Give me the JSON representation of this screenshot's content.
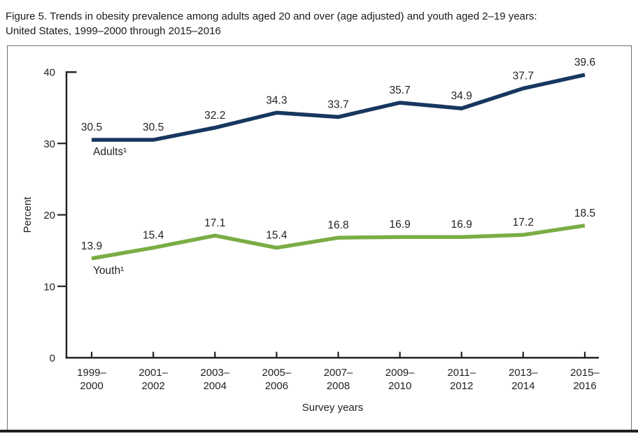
{
  "figure": {
    "title_line1": "Figure 5. Trends in obesity prevalence among adults aged 20 and over (age adjusted) and youth aged 2–19 years:",
    "title_line2": "United States, 1999–2000 through 2015–2016"
  },
  "chart_data": {
    "type": "line",
    "title": "Figure 5. Trends in obesity prevalence among adults aged 20 and over (age adjusted) and youth aged 2–19 years: United States, 1999–2000 through 2015–2016",
    "xlabel": "Survey years",
    "ylabel": "Percent",
    "ylim": [
      0,
      40
    ],
    "yticks": [
      0,
      10,
      20,
      30,
      40
    ],
    "grid": false,
    "legend_position": "inline-labels-on-lines",
    "axis_color": "#231f20",
    "categories": [
      "1999–2000",
      "2001–2002",
      "2003–2004",
      "2005–2006",
      "2007–2008",
      "2009–2010",
      "2011–2012",
      "2013–2014",
      "2015–2016"
    ],
    "categories_display": [
      [
        "1999–",
        "2000"
      ],
      [
        "2001–",
        "2002"
      ],
      [
        "2003–",
        "2004"
      ],
      [
        "2005–",
        "2006"
      ],
      [
        "2007–",
        "2008"
      ],
      [
        "2009–",
        "2010"
      ],
      [
        "2011–",
        "2012"
      ],
      [
        "2013–",
        "2014"
      ],
      [
        "2015–",
        "2016"
      ]
    ],
    "series": [
      {
        "name": "Adults¹",
        "id": "adults",
        "color": "#17375f",
        "values": [
          30.5,
          30.5,
          32.2,
          34.3,
          33.7,
          35.7,
          34.9,
          37.7,
          39.6
        ]
      },
      {
        "name": "Youth¹",
        "id": "youth",
        "color": "#7aad44",
        "values": [
          13.9,
          15.4,
          17.1,
          15.4,
          16.8,
          16.9,
          16.9,
          17.2,
          18.5
        ]
      }
    ]
  }
}
